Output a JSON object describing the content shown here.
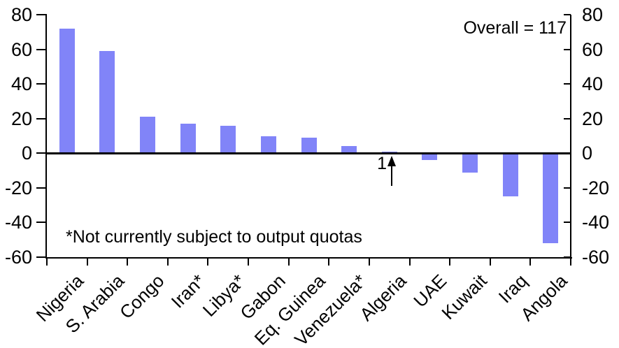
{
  "chart_data": {
    "type": "bar",
    "categories": [
      "Nigeria",
      "S. Arabia",
      "Congo",
      "Iran*",
      "Libya*",
      "Gabon",
      "Eq. Guinea",
      "Venezuela*",
      "Algeria",
      "UAE",
      "Kuwait",
      "Iraq",
      "Angola"
    ],
    "values": [
      72,
      59,
      21,
      17,
      16,
      10,
      9,
      4,
      1,
      -4,
      -11,
      -25,
      -52
    ],
    "title": "",
    "xlabel": "",
    "ylabel": "",
    "ylim": [
      -60,
      80
    ],
    "yticks": [
      80,
      60,
      40,
      20,
      0,
      -20,
      -40,
      -60
    ],
    "dual_y_axis": true,
    "grid": false,
    "legend_position": "none",
    "bar_color": "#8184F8",
    "axis_color": "#000000"
  },
  "annotations": {
    "overall": "Overall = 117",
    "footnote": "*Not currently subject to output quotas",
    "algeria_callout": "1"
  }
}
